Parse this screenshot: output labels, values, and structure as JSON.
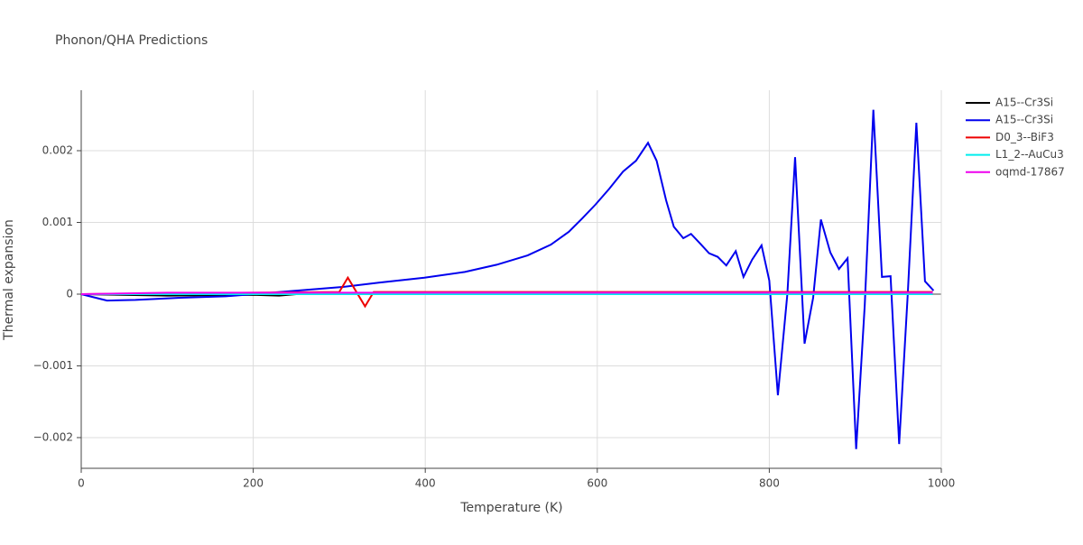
{
  "chart_data": {
    "type": "line",
    "title": "Phonon/QHA Predictions",
    "x_label": "Temperature (K)",
    "y_label": "Thermal expansion",
    "xlim": [
      0,
      1000
    ],
    "xticks": [
      0,
      200,
      400,
      600,
      800,
      1000
    ],
    "ylim": [
      -0.002428,
      0.002843
    ],
    "yticks": [
      {
        "value": -0.002,
        "label": "−0.002"
      },
      {
        "value": -0.001,
        "label": "−0.001"
      },
      0,
      0.001,
      0.002
    ],
    "grid": true,
    "legend": "right",
    "series": [
      {
        "name": "A15--Cr3Si",
        "color": "#000000",
        "x": [
          0,
          100,
          200,
          230,
          250,
          300,
          400,
          600,
          800,
          990
        ],
        "values": [
          0,
          -2e-05,
          -1e-05,
          -2e-05,
          0,
          0,
          0,
          0,
          0,
          0
        ]
      },
      {
        "name": "A15--Cr3Si",
        "color": "#0000ee",
        "x": [
          0,
          20,
          30,
          63,
          115,
          168,
          200,
          252,
          304,
          346,
          399,
          446,
          483,
          519,
          546,
          567,
          582,
          598,
          614,
          630,
          645,
          659,
          669,
          680,
          689,
          700,
          709,
          720,
          730,
          740,
          750,
          761,
          770,
          780,
          791,
          800,
          810,
          821,
          830,
          841,
          851,
          860,
          871,
          881,
          891,
          901,
          911,
          921,
          931,
          941,
          951,
          961,
          971,
          981,
          991
        ],
        "values": [
          0,
          -6e-05,
          -9e-05,
          -8e-05,
          -5e-05,
          -3e-05,
          0,
          5e-05,
          0.0001,
          0.00016,
          0.00023,
          0.00031,
          0.00041,
          0.00054,
          0.00069,
          0.00087,
          0.00105,
          0.00125,
          0.00147,
          0.00171,
          0.00186,
          0.00211,
          0.00186,
          0.00131,
          0.00094,
          0.00078,
          0.00084,
          0.0007,
          0.00057,
          0.00052,
          0.0004,
          0.0006,
          0.00024,
          0.00048,
          0.00068,
          0.00019,
          -0.00141,
          0,
          0.00191,
          -0.00069,
          -5e-05,
          0.00104,
          0.00058,
          0.00035,
          0.0005,
          -0.00216,
          -0.00015,
          0.00257,
          0.00024,
          0.00025,
          -0.00209,
          0,
          0.00239,
          0.00018,
          5e-05
        ]
      },
      {
        "name": "D0_3--BiF3",
        "color": "#ee0000",
        "x": [
          0,
          100,
          200,
          300,
          310,
          330,
          340,
          400,
          600,
          800,
          990
        ],
        "values": [
          0,
          1e-05,
          2e-05,
          3e-05,
          0.00023,
          -0.00017,
          3e-05,
          3e-05,
          3e-05,
          3e-05,
          3e-05
        ]
      },
      {
        "name": "L1_2--AuCu3",
        "color": "#00eeee",
        "x": [
          0,
          990
        ],
        "values": [
          0,
          0
        ]
      },
      {
        "name": "oqmd-17867",
        "color": "#ee00ee",
        "x": [
          0,
          100,
          990
        ],
        "values": [
          0,
          2e-05,
          2e-05
        ]
      }
    ]
  }
}
